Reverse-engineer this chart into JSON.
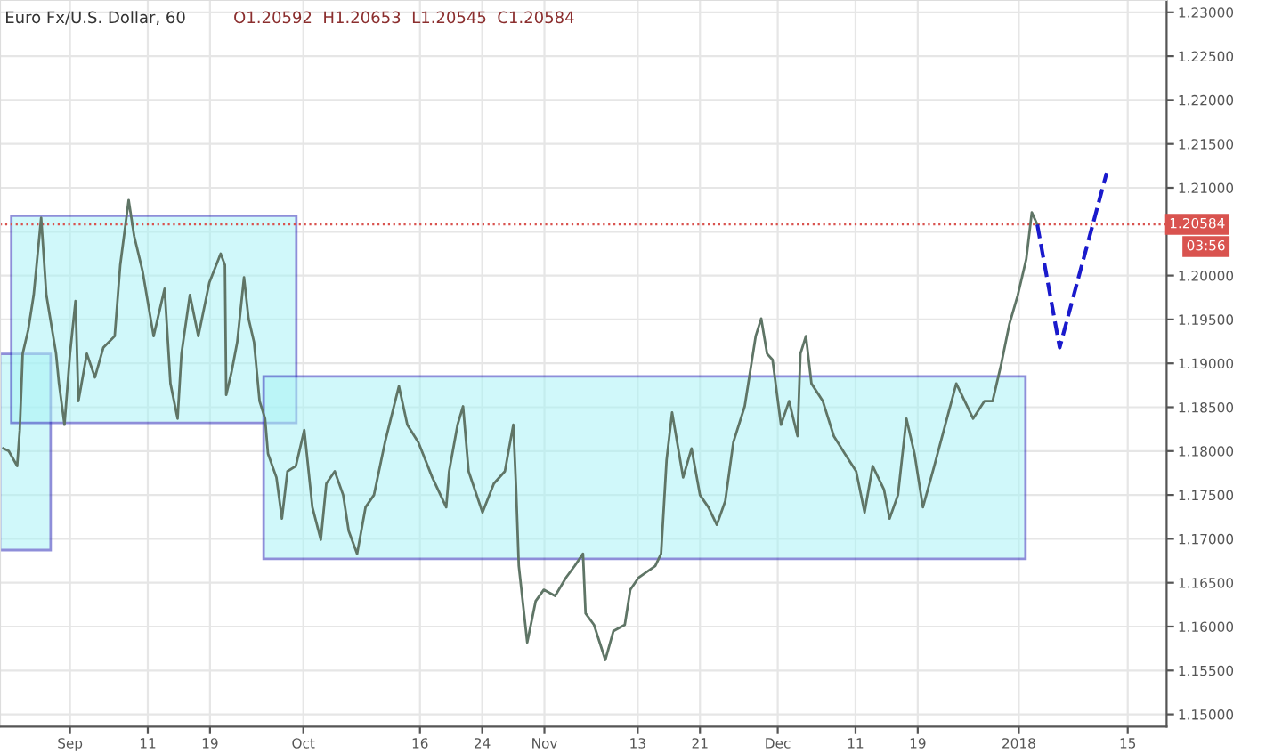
{
  "chart_data": {
    "type": "line",
    "title": "Euro Fx/U.S. Dollar, 60",
    "subtitle": "O1.20592  H1.20653  L1.20545  C1.20584",
    "annotations": [
      "03:56"
    ],
    "xlim": [
      "2017-08-23",
      "2018-01-20"
    ],
    "xticks": [
      {
        "value": "2017-09-01",
        "label": "Sep"
      },
      {
        "value": "2017-09-11",
        "label": "11"
      },
      {
        "value": "2017-09-19",
        "label": "19"
      },
      {
        "value": "2017-10-01",
        "label": "Oct"
      },
      {
        "value": "2017-10-16",
        "label": "16"
      },
      {
        "value": "2017-10-24",
        "label": "24"
      },
      {
        "value": "2017-11-01",
        "label": "Nov"
      },
      {
        "value": "2017-11-13",
        "label": "13"
      },
      {
        "value": "2017-11-21",
        "label": "21"
      },
      {
        "value": "2017-12-01",
        "label": "Dec"
      },
      {
        "value": "2017-12-11",
        "label": "11"
      },
      {
        "value": "2017-12-19",
        "label": "19"
      },
      {
        "value": "2018-01-01",
        "label": "2018"
      },
      {
        "value": "2018-01-15",
        "label": "15"
      }
    ],
    "ylim": [
      1.1486,
      1.2314
    ],
    "yticks": [
      {
        "value": 1.15,
        "label": "1.15000"
      },
      {
        "value": 1.155,
        "label": "1.15500"
      },
      {
        "value": 1.16,
        "label": "1.16000"
      },
      {
        "value": 1.165,
        "label": "1.16500"
      },
      {
        "value": 1.17,
        "label": "1.17000"
      },
      {
        "value": 1.175,
        "label": "1.17500"
      },
      {
        "value": 1.18,
        "label": "1.18000"
      },
      {
        "value": 1.185,
        "label": "1.18500"
      },
      {
        "value": 1.19,
        "label": "1.19000"
      },
      {
        "value": 1.195,
        "label": "1.19500"
      },
      {
        "value": 1.2,
        "label": "1.20000"
      },
      {
        "value": 1.205,
        "label": null
      },
      {
        "value": 1.21,
        "label": "1.21000"
      },
      {
        "value": 1.215,
        "label": "1.21500"
      },
      {
        "value": 1.22,
        "label": "1.22000"
      },
      {
        "value": 1.225,
        "label": "1.22500"
      },
      {
        "value": 1.23,
        "label": "1.23000"
      }
    ],
    "grid": true,
    "legend": false,
    "ref_lines": [
      {
        "axis": "y",
        "value": 1.20584,
        "label": "1.20584",
        "color": "#d9534f",
        "line_style": "dotted"
      }
    ],
    "series": [
      {
        "color": "#5f7566",
        "line_style": "solid",
        "x": [
          "2017-08-23T10:00",
          "2017-08-24T03:00",
          "2017-08-25T05:00",
          "2017-08-25T13:00",
          "2017-08-25T22:00",
          "2017-08-26T15:00",
          "2017-08-27T08:00",
          "2017-08-28T07:00",
          "2017-08-28T23:00",
          "2017-08-30T05:00",
          "2017-08-30T14:00",
          "2017-08-31T07:00",
          "2017-09-01T00:00",
          "2017-09-01T17:00",
          "2017-09-02T02:00",
          "2017-09-03T04:00",
          "2017-09-04T05:00",
          "2017-09-05T07:00",
          "2017-09-06T18:00",
          "2017-09-07T11:00",
          "2017-09-08T13:00",
          "2017-09-09T06:00",
          "2017-09-10T08:00",
          "2017-09-11T18:00",
          "2017-09-13T04:00",
          "2017-09-13T22:00",
          "2017-09-14T20:00",
          "2017-09-15T08:00",
          "2017-09-16T10:00",
          "2017-09-17T12:00",
          "2017-09-18T22:00",
          "2017-09-20T09:00",
          "2017-09-20T22:00",
          "2017-09-21T02:00",
          "2017-09-21T19:00",
          "2017-09-22T12:00",
          "2017-09-23T09:00",
          "2017-09-23T23:00",
          "2017-09-24T16:00",
          "2017-09-25T09:00",
          "2017-09-26T02:00",
          "2017-09-26T11:00",
          "2017-09-27T13:00",
          "2017-09-28T06:00",
          "2017-09-28T23:00",
          "2017-09-30T01:00",
          "2017-10-01T03:00",
          "2017-10-02T04:00",
          "2017-10-03T06:00",
          "2017-10-03T23:00",
          "2017-10-05T01:00",
          "2017-10-06T03:00",
          "2017-10-06T20:00",
          "2017-10-07T22:00",
          "2017-10-09T00:00",
          "2017-10-10T02:00",
          "2017-10-11T12:00",
          "2017-10-13T07:00",
          "2017-10-14T09:00",
          "2017-10-15T19:00",
          "2017-10-17T14:00",
          "2017-10-19T09:00",
          "2017-10-19T18:00",
          "2017-10-20T20:00",
          "2017-10-21T13:00",
          "2017-10-22T06:00",
          "2017-10-24T01:00",
          "2017-10-25T12:00",
          "2017-10-26T22:00",
          "2017-10-28T00:00",
          "2017-10-28T08:00",
          "2017-10-28T17:00",
          "2017-10-29T19:00",
          "2017-10-30T21:00",
          "2017-10-31T22:00",
          "2017-11-02T09:00",
          "2017-11-03T19:00",
          "2017-11-04T21:00",
          "2017-11-05T23:00",
          "2017-11-06T07:00",
          "2017-11-07T09:00",
          "2017-11-08T20:00",
          "2017-11-09T21:00",
          "2017-11-11T08:00",
          "2017-11-12T01:00",
          "2017-11-13T03:00",
          "2017-11-15T06:00",
          "2017-11-16T00:00",
          "2017-11-16T17:00",
          "2017-11-17T10:00",
          "2017-11-18T20:00",
          "2017-11-19T22:00",
          "2017-11-21T00:00",
          "2017-11-22T02:00",
          "2017-11-23T04:00",
          "2017-11-24T06:00",
          "2017-11-25T07:00",
          "2017-11-26T18:00",
          "2017-11-28T04:00",
          "2017-11-28T21:00",
          "2017-11-29T15:00",
          "2017-11-30T08:00",
          "2017-12-01T10:00",
          "2017-12-02T11:00",
          "2017-12-03T13:00",
          "2017-12-03T22:00",
          "2017-12-04T15:00",
          "2017-12-05T08:00",
          "2017-12-06T19:00",
          "2017-12-08T05:00",
          "2017-12-09T15:00",
          "2017-12-11T02:00",
          "2017-12-12T04:00",
          "2017-12-13T05:00",
          "2017-12-14T16:00",
          "2017-12-15T09:00",
          "2017-12-16T11:00",
          "2017-12-17T13:00",
          "2017-12-18T14:00",
          "2017-12-19T16:00",
          "2017-12-21T03:00",
          "2017-12-22T13:00",
          "2017-12-23T23:00",
          "2017-12-25T01:00",
          "2017-12-26T03:00",
          "2017-12-27T14:00",
          "2017-12-28T15:00",
          "2017-12-29T17:00",
          "2017-12-30T19:00",
          "2017-12-31T21:00",
          "2018-01-01T23:00",
          "2018-01-02T16:00",
          "2018-01-03T09:00"
        ],
        "values": [
          1.1803,
          1.18,
          1.1783,
          1.1824,
          1.1911,
          1.1938,
          1.1978,
          1.2066,
          1.1978,
          1.1911,
          1.1877,
          1.183,
          1.1911,
          1.1971,
          1.1857,
          1.1911,
          1.1884,
          1.1918,
          1.1931,
          1.2012,
          1.2086,
          1.2045,
          1.2005,
          1.1931,
          1.1985,
          1.1877,
          1.1837,
          1.1911,
          1.1978,
          1.1931,
          1.1992,
          1.2025,
          1.2012,
          1.1864,
          1.1891,
          1.1924,
          1.1998,
          1.1951,
          1.1924,
          1.1857,
          1.1837,
          1.1797,
          1.177,
          1.1723,
          1.1777,
          1.1783,
          1.1824,
          1.1736,
          1.1699,
          1.1763,
          1.1777,
          1.175,
          1.1709,
          1.1683,
          1.1736,
          1.175,
          1.181,
          1.1874,
          1.183,
          1.181,
          1.177,
          1.1736,
          1.1777,
          1.183,
          1.1851,
          1.1777,
          1.173,
          1.1763,
          1.1777,
          1.183,
          1.1763,
          1.1669,
          1.1582,
          1.1629,
          1.1642,
          1.1635,
          1.1656,
          1.1669,
          1.1683,
          1.1615,
          1.1602,
          1.1562,
          1.1595,
          1.1602,
          1.1642,
          1.1656,
          1.1669,
          1.1683,
          1.179,
          1.1844,
          1.177,
          1.1803,
          1.175,
          1.1736,
          1.1716,
          1.1743,
          1.181,
          1.1851,
          1.1931,
          1.1951,
          1.1911,
          1.1904,
          1.183,
          1.1857,
          1.1817,
          1.1911,
          1.1931,
          1.1877,
          1.1857,
          1.1817,
          1.1797,
          1.1777,
          1.173,
          1.1783,
          1.1756,
          1.1723,
          1.175,
          1.1837,
          1.1797,
          1.1736,
          1.1783,
          1.183,
          1.1877,
          1.1857,
          1.1837,
          1.1857,
          1.1857,
          1.1898,
          1.1945,
          1.1978,
          1.2019,
          1.2072,
          1.2058
        ]
      },
      {
        "color": "#1a1acc",
        "line_style": "dashed",
        "x": [
          "2018-01-03T09:00",
          "2018-01-06T06:00",
          "2018-01-12T07:00"
        ],
        "values": [
          1.2058,
          1.1918,
          1.2117
        ]
      }
    ]
  }
}
